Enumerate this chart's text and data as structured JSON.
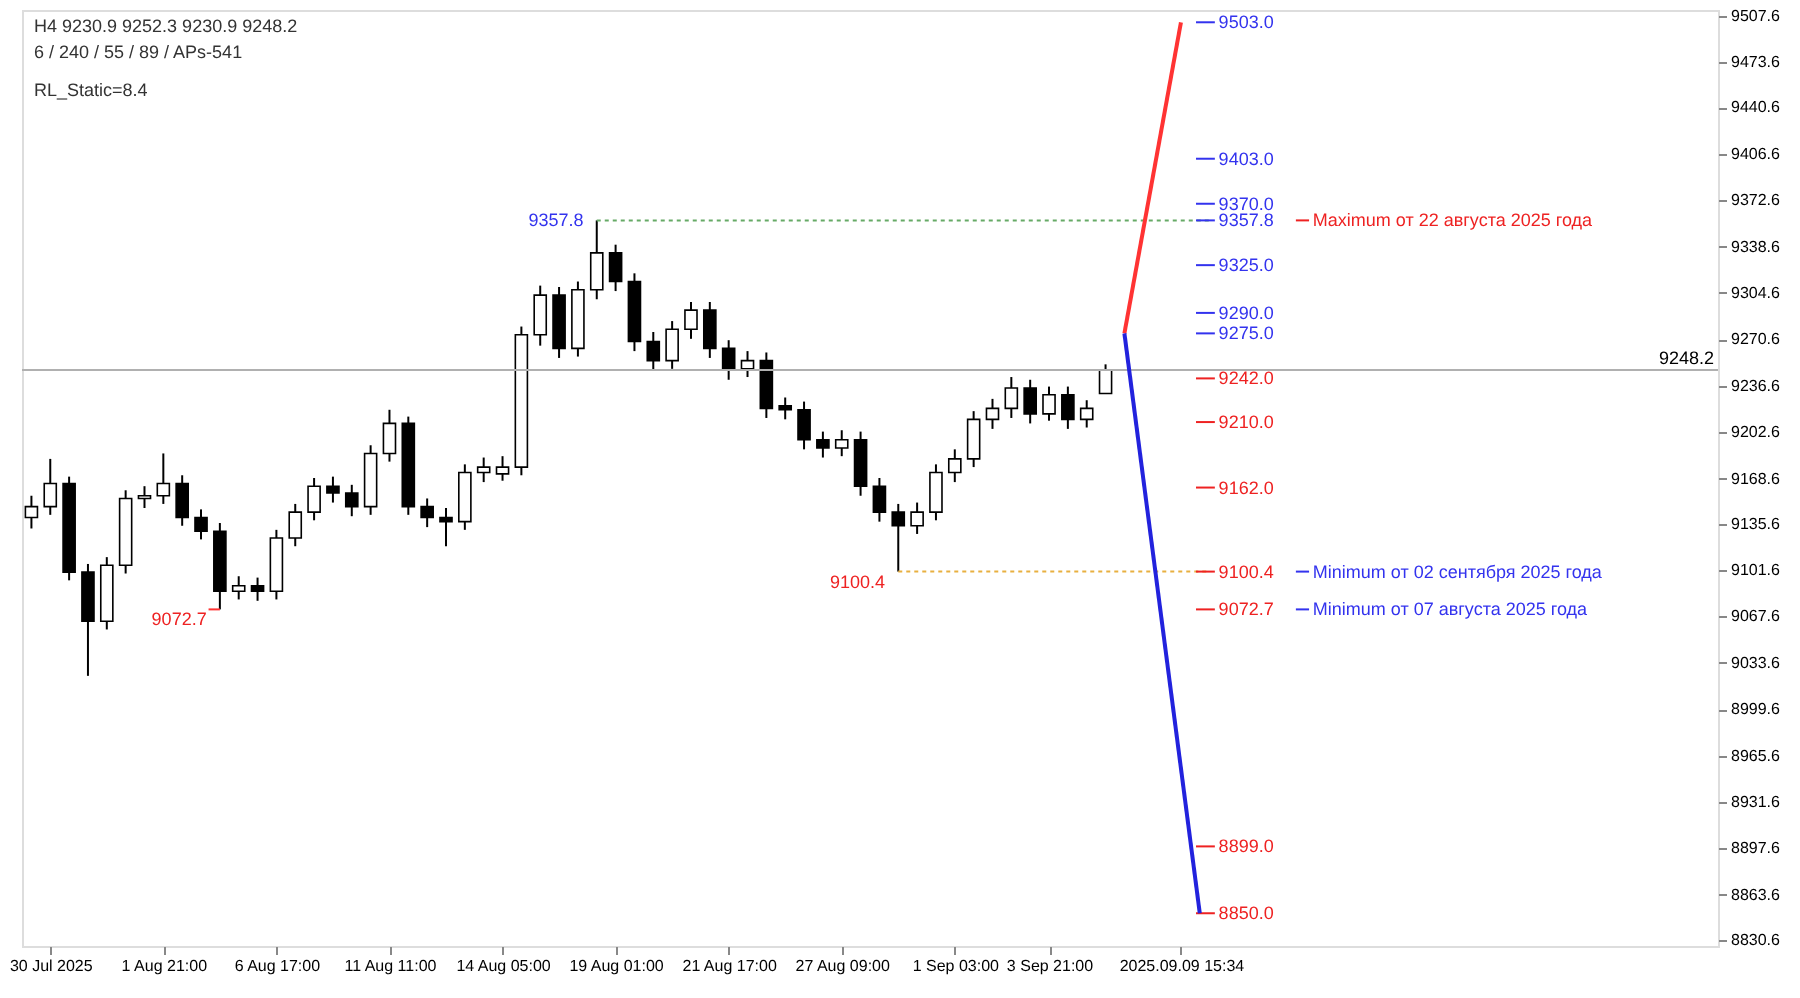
{
  "chart_data": {
    "type": "candlestick",
    "categories": [
      null,
      "30 Jul 2025",
      null,
      null,
      null,
      null,
      null,
      "1 Aug 21:00",
      null,
      null,
      null,
      null,
      null,
      "6 Aug 17:00",
      null,
      null,
      null,
      null,
      null,
      "11 Aug 11:00",
      null,
      null,
      null,
      null,
      null,
      "14 Aug 05:00",
      null,
      null,
      null,
      null,
      null,
      "19 Aug 01:00",
      null,
      null,
      null,
      null,
      null,
      "21 Aug 17:00",
      null,
      null,
      null,
      null,
      null,
      "27 Aug 09:00",
      null,
      null,
      null,
      null,
      null,
      "1 Sep 03:00",
      null,
      null,
      null,
      null,
      "3 Sep 21:00",
      null,
      null,
      null,
      null,
      null,
      null,
      "2025.09.09 15:34",
      null,
      null,
      null,
      null,
      null,
      null,
      null,
      null,
      null,
      null,
      null,
      null,
      null,
      null,
      null,
      null,
      null,
      null,
      null,
      null,
      null,
      null,
      null,
      null,
      null,
      null,
      null,
      null
    ],
    "ohlc": [
      [
        9140,
        9156,
        9132,
        9148
      ],
      [
        9148,
        9183,
        9142,
        9165
      ],
      [
        9165,
        9170,
        9094,
        9100
      ],
      [
        9100,
        9106,
        9024,
        9064
      ],
      [
        9064,
        9111,
        9058,
        9105
      ],
      [
        9105,
        9160,
        9099,
        9154
      ],
      [
        9154,
        9163,
        9147,
        9156
      ],
      [
        9156,
        9187,
        9150,
        9165
      ],
      [
        9165,
        9171,
        9134,
        9140
      ],
      [
        9140,
        9146,
        9124,
        9130
      ],
      [
        9130,
        9136,
        9072.7,
        9086
      ],
      [
        9086,
        9097,
        9080,
        9090
      ],
      [
        9090,
        9096,
        9079,
        9086
      ],
      [
        9086,
        9131,
        9080,
        9125
      ],
      [
        9125,
        9150,
        9119,
        9144
      ],
      [
        9144,
        9169,
        9138,
        9163
      ],
      [
        9163,
        9170,
        9151,
        9158
      ],
      [
        9158,
        9164,
        9141,
        9148
      ],
      [
        9148,
        9193,
        9142,
        9187
      ],
      [
        9187,
        9219,
        9181,
        9209
      ],
      [
        9209,
        9214,
        9142,
        9148
      ],
      [
        9148,
        9154,
        9133,
        9140
      ],
      [
        9140,
        9147,
        9119,
        9137
      ],
      [
        9137,
        9179,
        9131,
        9173
      ],
      [
        9173,
        9184,
        9166,
        9177
      ],
      [
        9172,
        9185,
        9167,
        9177
      ],
      [
        9177,
        9280,
        9171,
        9274
      ],
      [
        9274,
        9310,
        9266,
        9303
      ],
      [
        9303,
        9309,
        9257,
        9264
      ],
      [
        9264,
        9313,
        9258,
        9307
      ],
      [
        9307,
        9357.8,
        9300,
        9334
      ],
      [
        9334,
        9340,
        9306,
        9313
      ],
      [
        9313,
        9319,
        9262,
        9269
      ],
      [
        9269,
        9276,
        9248,
        9255
      ],
      [
        9255,
        9284,
        9249,
        9278
      ],
      [
        9278,
        9298,
        9271,
        9292
      ],
      [
        9292,
        9298,
        9257,
        9264
      ],
      [
        9264,
        9270,
        9241,
        9249
      ],
      [
        9249,
        9262,
        9243,
        9255
      ],
      [
        9255,
        9261,
        9213,
        9220
      ],
      [
        9222,
        9228,
        9212,
        9219
      ],
      [
        9219,
        9225,
        9190,
        9197
      ],
      [
        9197,
        9203,
        9184,
        9191
      ],
      [
        9191,
        9204,
        9185,
        9197
      ],
      [
        9197,
        9203,
        9156,
        9163
      ],
      [
        9163,
        9169,
        9137,
        9144
      ],
      [
        9144,
        9150,
        9100.4,
        9134
      ],
      [
        9134,
        9151,
        9128,
        9144
      ],
      [
        9144,
        9179,
        9138,
        9173
      ],
      [
        9173,
        9190,
        9166,
        9183
      ],
      [
        9183,
        9218,
        9177,
        9212
      ],
      [
        9212,
        9227,
        9205,
        9220
      ],
      [
        9220,
        9243,
        9213,
        9235
      ],
      [
        9235,
        9241,
        9209,
        9216
      ],
      [
        9216,
        9236,
        9211,
        9230
      ],
      [
        9230,
        9236,
        9205,
        9212
      ],
      [
        9212,
        9226,
        9206,
        9220
      ],
      [
        9230.9,
        9252.3,
        9230.9,
        9248.2
      ],
      null,
      null,
      null,
      null,
      null,
      null,
      null,
      null,
      null,
      null,
      null,
      null,
      null,
      null,
      null,
      null,
      null,
      null,
      null,
      null,
      null,
      null,
      null,
      null,
      null,
      null,
      null,
      null,
      null,
      null,
      null,
      null
    ],
    "series": [
      {
        "type": "line",
        "color": "#ff3333",
        "values": [
          null,
          null,
          null,
          null,
          null,
          null,
          null,
          null,
          null,
          null,
          null,
          null,
          null,
          null,
          null,
          null,
          null,
          null,
          null,
          null,
          null,
          null,
          null,
          null,
          null,
          null,
          null,
          null,
          null,
          null,
          null,
          null,
          null,
          null,
          null,
          null,
          null,
          null,
          null,
          null,
          null,
          null,
          null,
          null,
          null,
          null,
          null,
          null,
          null,
          null,
          null,
          null,
          null,
          null,
          null,
          null,
          null,
          null,
          9275,
          null,
          null,
          9503,
          null,
          null,
          null,
          null,
          null,
          null,
          null,
          null,
          null,
          null,
          null,
          null,
          null,
          null,
          null,
          null,
          null,
          null,
          null,
          null,
          null,
          null,
          null,
          null,
          null,
          null,
          null,
          null
        ]
      },
      {
        "type": "line",
        "color": "#2222dd",
        "values": [
          null,
          null,
          null,
          null,
          null,
          null,
          null,
          null,
          null,
          null,
          null,
          null,
          null,
          null,
          null,
          null,
          null,
          null,
          null,
          null,
          null,
          null,
          null,
          null,
          null,
          null,
          null,
          null,
          null,
          null,
          null,
          null,
          null,
          null,
          null,
          null,
          null,
          null,
          null,
          null,
          null,
          null,
          null,
          null,
          null,
          null,
          null,
          null,
          null,
          null,
          null,
          null,
          null,
          null,
          null,
          null,
          null,
          null,
          9275,
          null,
          null,
          null,
          8850,
          null,
          null,
          null,
          null,
          null,
          null,
          null,
          null,
          null,
          null,
          null,
          null,
          null,
          null,
          null,
          null,
          null,
          null,
          null,
          null,
          null,
          null,
          null,
          null,
          null,
          null,
          null
        ]
      }
    ],
    "ylim": [
      8826,
      9512
    ],
    "yticks": [
      8830.6,
      8863.6,
      8897.6,
      8931.6,
      8965.6,
      8999.6,
      9033.6,
      9067.6,
      9101.6,
      9135.6,
      9168.6,
      9202.6,
      9236.6,
      9270.6,
      9304.6,
      9338.6,
      9372.6,
      9406.6,
      9440.6,
      9473.6,
      9507.6
    ],
    "grid": false,
    "ref_lines": [
      {
        "axis": "y",
        "value": 9248.2,
        "label": "9248.2",
        "color": "#b0b0b0",
        "line_style": "solid"
      },
      {
        "axis": "y",
        "value": 9357.8,
        "label": "9357.8",
        "color": "#66aa66",
        "line_style": "dotted"
      },
      {
        "axis": "y",
        "value": 9072.7,
        "label": "9072.7",
        "color": "#ff3333",
        "line_style": "solid"
      },
      {
        "axis": "y",
        "value": 9100.4,
        "label": "9100.4",
        "color": "#e8b040",
        "line_style": "dotted"
      },
      {
        "axis": "y",
        "value": 9503.0,
        "label": "9503.0",
        "color": "#3333ee",
        "line_style": "solid"
      },
      {
        "axis": "y",
        "value": 9403.0,
        "label": "9403.0",
        "color": "#3333ee",
        "line_style": "solid"
      },
      {
        "axis": "y",
        "value": 9370.0,
        "label": "9370.0",
        "color": "#3333ee",
        "line_style": "solid"
      },
      {
        "axis": "y",
        "value": 9357.8,
        "label": "9357.8",
        "color": "#3333ee",
        "line_style": "solid"
      },
      {
        "axis": "y",
        "value": 9357.8,
        "label": "Maximum от 22 августа 2025 года",
        "color": "#ee2222",
        "line_style": "solid"
      },
      {
        "axis": "y",
        "value": 9325.0,
        "label": "9325.0",
        "color": "#3333ee",
        "line_style": "solid"
      },
      {
        "axis": "y",
        "value": 9290.0,
        "label": "9290.0",
        "color": "#3333ee",
        "line_style": "solid"
      },
      {
        "axis": "y",
        "value": 9275.0,
        "label": "9275.0",
        "color": "#3333ee",
        "line_style": "solid"
      },
      {
        "axis": "y",
        "value": 9242.0,
        "label": "9242.0",
        "color": "#ee2222",
        "line_style": "solid"
      },
      {
        "axis": "y",
        "value": 9210.0,
        "label": "9210.0",
        "color": "#ee2222",
        "line_style": "solid"
      },
      {
        "axis": "y",
        "value": 9162.0,
        "label": "9162.0",
        "color": "#ee2222",
        "line_style": "solid"
      },
      {
        "axis": "y",
        "value": 9100.4,
        "label": "9100.4",
        "color": "#ee2222",
        "line_style": "solid"
      },
      {
        "axis": "y",
        "value": 9100.4,
        "label": "Minimum от 02 сентября 2025 года",
        "color": "#3333ee",
        "line_style": "solid"
      },
      {
        "axis": "y",
        "value": 9072.7,
        "label": "9072.7",
        "color": "#ee2222",
        "line_style": "solid"
      },
      {
        "axis": "y",
        "value": 9072.7,
        "label": "Minimum от 07 августа 2025 года",
        "color": "#3333ee",
        "line_style": "solid"
      },
      {
        "axis": "y",
        "value": 8899.0,
        "label": "8899.0",
        "color": "#ee2222",
        "line_style": "solid"
      },
      {
        "axis": "y",
        "value": 8850.0,
        "label": "8850.0",
        "color": "#ee2222",
        "line_style": "solid"
      }
    ],
    "annotations": [
      "H4  9230.9 9252.3 9230.9 9248.2",
      "6 / 240 / 55 / 89 / APs-541",
      "RL_Static=8.4"
    ]
  }
}
